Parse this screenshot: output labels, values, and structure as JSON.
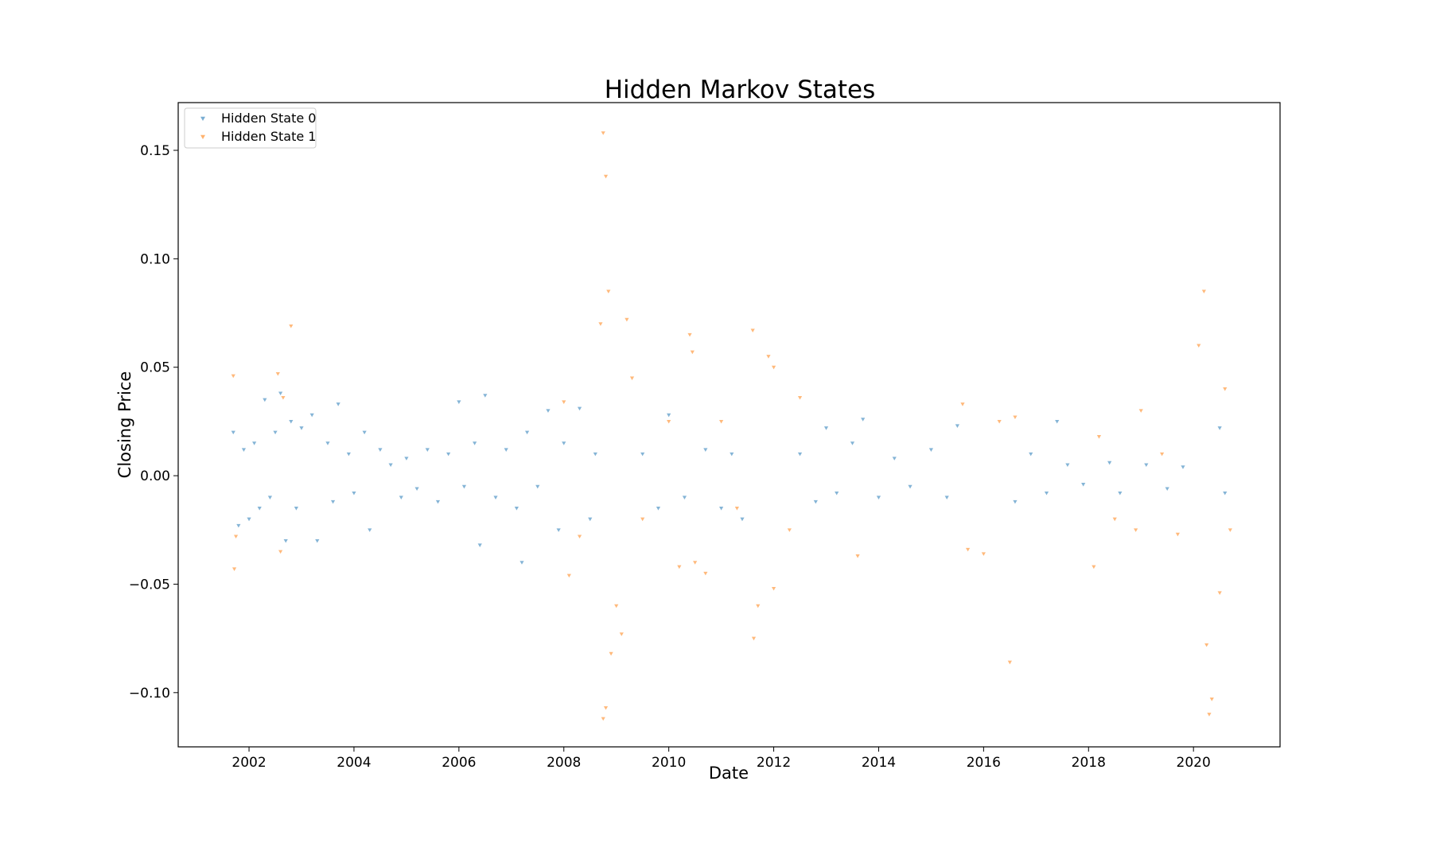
{
  "chart_data": {
    "type": "scatter",
    "title": "Hidden Markov States",
    "xlabel": "Date",
    "ylabel": "Closing Price",
    "x_range": [
      2000.65,
      2021.65
    ],
    "ylim": [
      -0.125,
      0.172
    ],
    "x_ticks": [
      "2002",
      "2004",
      "2006",
      "2008",
      "2010",
      "2012",
      "2014",
      "2016",
      "2018",
      "2020"
    ],
    "y_ticks": [
      "0.15",
      "0.10",
      "0.05",
      "0.00",
      "−0.05",
      "−0.10"
    ],
    "grid": false,
    "legend_position": "top-left",
    "marker": "triangle-down",
    "colors": {
      "state0": "#1f77b4",
      "state1": "#ff7f0e"
    },
    "series": [
      {
        "name": "Hidden State 0",
        "color": "#1f77b4",
        "points": [
          [
            2001.7,
            0.02
          ],
          [
            2001.8,
            -0.023
          ],
          [
            2001.9,
            0.012
          ],
          [
            2002.0,
            -0.02
          ],
          [
            2002.1,
            0.015
          ],
          [
            2002.2,
            -0.015
          ],
          [
            2002.3,
            0.035
          ],
          [
            2002.4,
            -0.01
          ],
          [
            2002.5,
            0.02
          ],
          [
            2002.6,
            0.038
          ],
          [
            2002.7,
            -0.03
          ],
          [
            2002.8,
            0.025
          ],
          [
            2002.9,
            -0.015
          ],
          [
            2003.0,
            0.022
          ],
          [
            2003.2,
            0.028
          ],
          [
            2003.3,
            -0.03
          ],
          [
            2003.5,
            0.015
          ],
          [
            2003.6,
            -0.012
          ],
          [
            2003.7,
            0.033
          ],
          [
            2003.9,
            0.01
          ],
          [
            2004.0,
            -0.008
          ],
          [
            2004.2,
            0.02
          ],
          [
            2004.3,
            -0.025
          ],
          [
            2004.5,
            0.012
          ],
          [
            2004.7,
            0.005
          ],
          [
            2004.9,
            -0.01
          ],
          [
            2005.0,
            0.008
          ],
          [
            2005.2,
            -0.006
          ],
          [
            2005.4,
            0.012
          ],
          [
            2005.6,
            -0.012
          ],
          [
            2005.8,
            0.01
          ],
          [
            2006.0,
            0.034
          ],
          [
            2006.1,
            -0.005
          ],
          [
            2006.3,
            0.015
          ],
          [
            2006.4,
            -0.032
          ],
          [
            2006.5,
            0.037
          ],
          [
            2006.7,
            -0.01
          ],
          [
            2006.9,
            0.012
          ],
          [
            2007.1,
            -0.015
          ],
          [
            2007.2,
            -0.04
          ],
          [
            2007.3,
            0.02
          ],
          [
            2007.5,
            -0.005
          ],
          [
            2007.7,
            0.03
          ],
          [
            2007.9,
            -0.025
          ],
          [
            2008.0,
            0.015
          ],
          [
            2008.3,
            0.031
          ],
          [
            2008.5,
            -0.02
          ],
          [
            2008.6,
            0.01
          ],
          [
            2009.5,
            0.01
          ],
          [
            2009.8,
            -0.015
          ],
          [
            2010.0,
            0.028
          ],
          [
            2010.3,
            -0.01
          ],
          [
            2010.7,
            0.012
          ],
          [
            2011.0,
            -0.015
          ],
          [
            2011.2,
            0.01
          ],
          [
            2011.4,
            -0.02
          ],
          [
            2012.5,
            0.01
          ],
          [
            2012.8,
            -0.012
          ],
          [
            2013.0,
            0.022
          ],
          [
            2013.2,
            -0.008
          ],
          [
            2013.5,
            0.015
          ],
          [
            2013.7,
            0.026
          ],
          [
            2014.0,
            -0.01
          ],
          [
            2014.3,
            0.008
          ],
          [
            2014.6,
            -0.005
          ],
          [
            2015.0,
            0.012
          ],
          [
            2015.3,
            -0.01
          ],
          [
            2015.5,
            0.023
          ],
          [
            2016.6,
            -0.012
          ],
          [
            2016.9,
            0.01
          ],
          [
            2017.2,
            -0.008
          ],
          [
            2017.4,
            0.025
          ],
          [
            2017.6,
            0.005
          ],
          [
            2017.9,
            -0.004
          ],
          [
            2018.4,
            0.006
          ],
          [
            2018.6,
            -0.008
          ],
          [
            2019.1,
            0.005
          ],
          [
            2019.5,
            -0.006
          ],
          [
            2019.8,
            0.004
          ],
          [
            2020.5,
            0.022
          ],
          [
            2020.6,
            -0.008
          ]
        ]
      },
      {
        "name": "Hidden State 1",
        "color": "#ff7f0e",
        "points": [
          [
            2001.7,
            0.046
          ],
          [
            2001.72,
            -0.043
          ],
          [
            2001.75,
            -0.028
          ],
          [
            2002.55,
            0.047
          ],
          [
            2002.6,
            -0.035
          ],
          [
            2002.65,
            0.036
          ],
          [
            2002.8,
            0.069
          ],
          [
            2008.0,
            0.034
          ],
          [
            2008.1,
            -0.046
          ],
          [
            2008.3,
            -0.028
          ],
          [
            2008.7,
            0.07
          ],
          [
            2008.75,
            0.158
          ],
          [
            2008.8,
            0.138
          ],
          [
            2008.85,
            0.085
          ],
          [
            2008.8,
            -0.107
          ],
          [
            2008.75,
            -0.112
          ],
          [
            2008.9,
            -0.082
          ],
          [
            2009.0,
            -0.06
          ],
          [
            2009.1,
            -0.073
          ],
          [
            2009.2,
            0.072
          ],
          [
            2009.3,
            0.045
          ],
          [
            2009.5,
            -0.02
          ],
          [
            2010.0,
            0.025
          ],
          [
            2010.2,
            -0.042
          ],
          [
            2010.4,
            0.065
          ],
          [
            2010.45,
            0.057
          ],
          [
            2010.5,
            -0.04
          ],
          [
            2010.7,
            -0.045
          ],
          [
            2011.0,
            0.025
          ],
          [
            2011.3,
            -0.015
          ],
          [
            2011.6,
            0.067
          ],
          [
            2011.62,
            -0.075
          ],
          [
            2011.7,
            -0.06
          ],
          [
            2011.9,
            0.055
          ],
          [
            2012.0,
            0.05
          ],
          [
            2012.0,
            -0.052
          ],
          [
            2012.3,
            -0.025
          ],
          [
            2012.5,
            0.036
          ],
          [
            2013.6,
            -0.037
          ],
          [
            2015.6,
            0.033
          ],
          [
            2015.7,
            -0.034
          ],
          [
            2016.0,
            -0.036
          ],
          [
            2016.3,
            0.025
          ],
          [
            2016.5,
            -0.086
          ],
          [
            2016.6,
            0.027
          ],
          [
            2018.1,
            -0.042
          ],
          [
            2018.2,
            0.018
          ],
          [
            2018.5,
            -0.02
          ],
          [
            2018.9,
            -0.025
          ],
          [
            2019.0,
            0.03
          ],
          [
            2019.4,
            0.01
          ],
          [
            2019.7,
            -0.027
          ],
          [
            2020.1,
            0.06
          ],
          [
            2020.2,
            0.085
          ],
          [
            2020.25,
            -0.078
          ],
          [
            2020.3,
            -0.11
          ],
          [
            2020.35,
            -0.103
          ],
          [
            2020.5,
            -0.054
          ],
          [
            2020.6,
            0.04
          ],
          [
            2020.7,
            -0.025
          ]
        ]
      }
    ]
  }
}
